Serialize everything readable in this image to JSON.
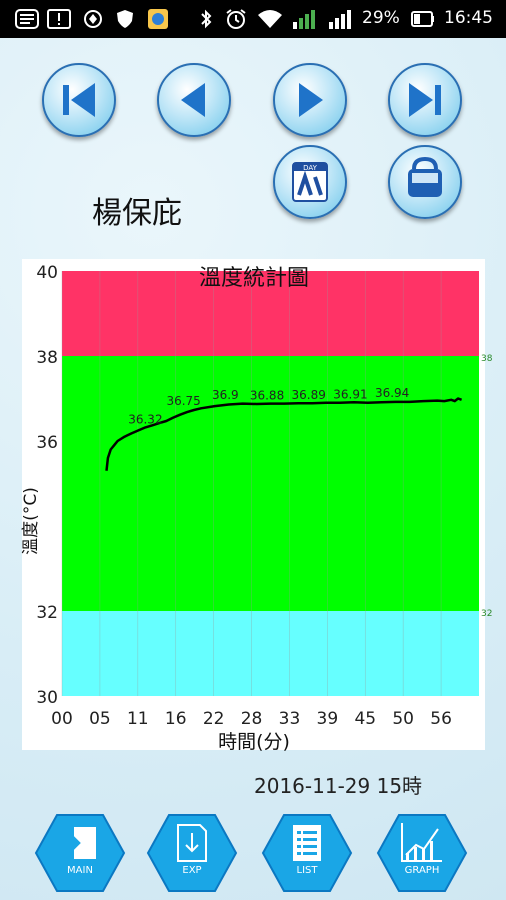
{
  "status_bar": {
    "battery": "29%",
    "time": "16:45",
    "icons": [
      "whatsapp-icon",
      "notification-icon",
      "app-icon",
      "shield-icon",
      "gallery-icon",
      "bluetooth-icon",
      "alarm-icon",
      "wifi-icon",
      "signal-icon",
      "signal-icon",
      "battery-icon"
    ]
  },
  "nav": {
    "buttons": [
      "first-page",
      "prev-page",
      "next-page",
      "last-page"
    ]
  },
  "patient": {
    "name": "楊保庇"
  },
  "tools": {
    "buttons": [
      "calendar",
      "save"
    ],
    "calendar_badge": "DAY"
  },
  "chart_data": {
    "type": "line",
    "title": "溫度統計圖",
    "xlabel": "時間(分)",
    "ylabel": "溫度(°C)",
    "ylim": [
      30,
      40
    ],
    "xlim": [
      0,
      60
    ],
    "x_ticks": [
      "00",
      "05",
      "11",
      "16",
      "22",
      "28",
      "33",
      "39",
      "45",
      "50",
      "56"
    ],
    "y_ticks": [
      "30",
      "32",
      "36",
      "38",
      "40"
    ],
    "bands": [
      {
        "from": 30,
        "to": 32,
        "color": "#66ffff"
      },
      {
        "from": 32,
        "to": 38,
        "color": "#00ff00"
      },
      {
        "from": 38,
        "to": 40,
        "color": "#ff3366"
      }
    ],
    "right_markers": [
      "32",
      "38"
    ],
    "line_color": "#000000",
    "series": [
      {
        "x": [
          6.4,
          6.6,
          7,
          7.5,
          8,
          9,
          10,
          11,
          12,
          13,
          14,
          15,
          16,
          17,
          18,
          19,
          20,
          22,
          24,
          26,
          28,
          30,
          32,
          34,
          36,
          38,
          40,
          42,
          44,
          46,
          48,
          50,
          52,
          54,
          55,
          56,
          56.5,
          57,
          57.5
        ],
        "y": [
          35.3,
          35.6,
          35.8,
          35.9,
          36.0,
          36.1,
          36.18,
          36.25,
          36.32,
          36.37,
          36.42,
          36.47,
          36.55,
          36.62,
          36.68,
          36.73,
          36.77,
          36.82,
          36.86,
          36.88,
          36.87,
          36.88,
          36.88,
          36.89,
          36.89,
          36.9,
          36.9,
          36.91,
          36.9,
          36.91,
          36.92,
          36.92,
          36.94,
          36.95,
          36.94,
          36.97,
          36.94,
          37.0,
          36.97
        ]
      }
    ],
    "data_labels": [
      {
        "x": 12,
        "y": 36.32,
        "text": "36.32"
      },
      {
        "x": 17.5,
        "y": 36.75,
        "text": "36.75"
      },
      {
        "x": 23.5,
        "y": 36.9,
        "text": "36.9"
      },
      {
        "x": 29.5,
        "y": 36.88,
        "text": "36.88"
      },
      {
        "x": 35.5,
        "y": 36.89,
        "text": "36.89"
      },
      {
        "x": 41.5,
        "y": 36.91,
        "text": "36.91"
      },
      {
        "x": 47.5,
        "y": 36.94,
        "text": "36.94"
      }
    ],
    "grid": true
  },
  "date_label": "2016-11-29 15時",
  "bottom_menu": [
    {
      "label": "MAIN",
      "icon": "main-icon"
    },
    {
      "label": "EXP",
      "icon": "export-icon"
    },
    {
      "label": "LIST",
      "icon": "list-icon"
    },
    {
      "label": "GRAPH",
      "icon": "graph-icon"
    }
  ]
}
